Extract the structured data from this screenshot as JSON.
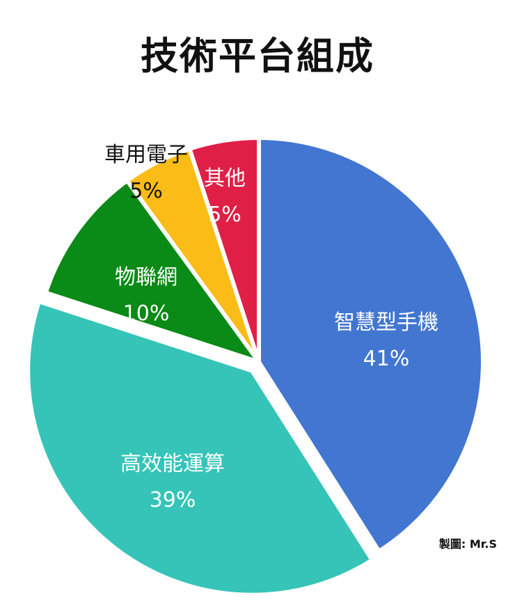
{
  "chart_data": {
    "type": "pie",
    "title": "技術平台組成",
    "categories": [
      "智慧型手機",
      "高效能運算",
      "物聯網",
      "車用電子",
      "其他"
    ],
    "values": [
      41,
      39,
      10,
      5,
      5
    ],
    "value_labels": [
      "41%",
      "39%",
      "10%",
      "5%",
      "5%"
    ],
    "colors": [
      "#4276d0",
      "#35c4b7",
      "#0a8a16",
      "#fbbc17",
      "#e01f47"
    ],
    "label_colors": [
      "#ffffff",
      "#ffffff",
      "#ffffff",
      "#111111",
      "#ffffff"
    ],
    "exploded": [
      false,
      true,
      false,
      false,
      false
    ],
    "legend": "none"
  },
  "credit": "製圖: Mr.S"
}
